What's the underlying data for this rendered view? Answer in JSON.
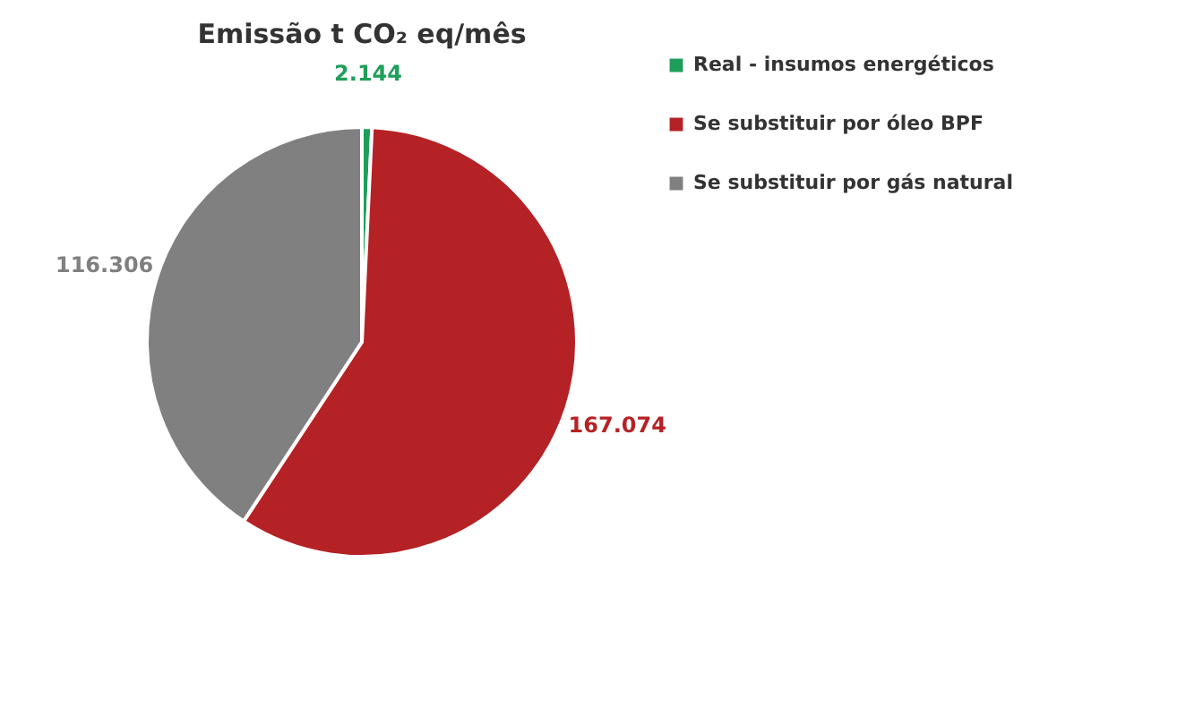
{
  "chart_data": {
    "type": "pie",
    "title": "Emissão t CO₂ eq/mês",
    "categories": [
      "Real - insumos energéticos",
      "Se substituir por óleo BPF",
      "Se substituir por gás natural"
    ],
    "values": [
      2144,
      167074,
      116306
    ],
    "colors": [
      "#1e9e5a",
      "#b52225",
      "#808080"
    ],
    "value_labels": [
      "2.144",
      "167.074",
      "116.306"
    ],
    "legend": "right"
  }
}
